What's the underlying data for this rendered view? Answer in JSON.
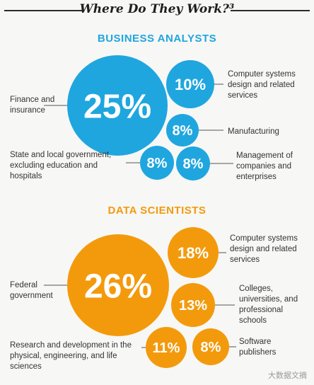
{
  "title": "Where Do They Work?³",
  "colors": {
    "blue": "#1fa6df",
    "orange": "#f39a0c",
    "leader": "#555555"
  },
  "watermark": "大数据文摘",
  "chart_data": [
    {
      "type": "bubble",
      "title": "BUSINESS ANALYSTS",
      "items": [
        {
          "label": "Finance and insurance",
          "value": 25,
          "display": "25%"
        },
        {
          "label": "Computer systems design and related services",
          "value": 10,
          "display": "10%"
        },
        {
          "label": "Manufacturing",
          "value": 8,
          "display": "8%"
        },
        {
          "label": "State and local government, excluding education and hospitals",
          "value": 8,
          "display": "8%"
        },
        {
          "label": "Management of companies and enterprises",
          "value": 8,
          "display": "8%"
        }
      ]
    },
    {
      "type": "bubble",
      "title": "DATA SCIENTISTS",
      "items": [
        {
          "label": "Federal government",
          "value": 26,
          "display": "26%"
        },
        {
          "label": "Computer systems design and related services",
          "value": 18,
          "display": "18%"
        },
        {
          "label": "Colleges, universities, and professional schools",
          "value": 13,
          "display": "13%"
        },
        {
          "label": "Research and development in the physical, engineering, and life sciences",
          "value": 11,
          "display": "11%"
        },
        {
          "label": "Software publishers",
          "value": 8,
          "display": "8%"
        }
      ]
    }
  ]
}
